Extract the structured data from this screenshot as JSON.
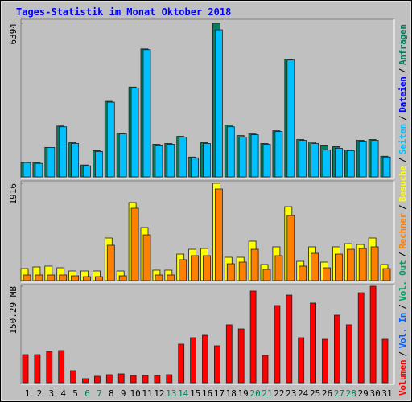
{
  "chart_data": [
    {
      "type": "bar",
      "title": "Tages-Statistik im Monat Oktober 2018",
      "ylim": [
        0,
        6394
      ],
      "yticks": [
        6394
      ],
      "series": [
        {
          "name": "Anfragen",
          "color": "#008060",
          "values": [
            596,
            596,
            1225,
            2118,
            1423,
            497,
            1092,
            3145,
            1821,
            3740,
            5329,
            1357,
            1390,
            1688,
            828,
            1423,
            6394,
            2152,
            1721,
            1787,
            1390,
            1920,
            4899,
            1556,
            1456,
            1324,
            1258,
            1125,
            1523,
            1556,
            861
          ]
        },
        {
          "name": "Seiten",
          "color": "#00c0ff",
          "values": [
            596,
            563,
            1225,
            2085,
            1390,
            463,
            1059,
            3111,
            1787,
            3707,
            5296,
            1324,
            1357,
            1655,
            794,
            1390,
            6124,
            2085,
            1655,
            1754,
            1357,
            1887,
            4866,
            1523,
            1390,
            1125,
            1192,
            1092,
            1490,
            1523,
            828
          ]
        }
      ],
      "other_legend": [
        {
          "name": "Dateien",
          "color": "#0000ff"
        }
      ]
    },
    {
      "type": "bar",
      "ylim": [
        0,
        1916
      ],
      "yticks": [
        1916
      ],
      "series": [
        {
          "name": "Besuche",
          "color": "#ffff00",
          "values": [
            237,
            269,
            285,
            253,
            190,
            190,
            190,
            839,
            190,
            1536,
            1045,
            206,
            206,
            522,
            617,
            633,
            1916,
            459,
            459,
            776,
            317,
            665,
            1456,
            380,
            665,
            364,
            665,
            728,
            712,
            839,
            317
          ]
        },
        {
          "name": "Rechner",
          "color": "#ff8000",
          "values": [
            111,
            111,
            111,
            111,
            95,
            79,
            79,
            697,
            95,
            1425,
            902,
            111,
            111,
            412,
            491,
            491,
            1805,
            332,
            364,
            617,
            222,
            491,
            1282,
            285,
            538,
            253,
            522,
            617,
            633,
            665,
            237
          ]
        }
      ]
    },
    {
      "type": "bar",
      "ylim": [
        0,
        150.29
      ],
      "yticks": [
        {
          "value": 150.29,
          "label": "150.29 MB"
        }
      ],
      "categories": [
        "1",
        "2",
        "3",
        "4",
        "5",
        "6",
        "7",
        "8",
        "9",
        "10",
        "11",
        "12",
        "13",
        "14",
        "15",
        "16",
        "17",
        "18",
        "19",
        "20",
        "21",
        "22",
        "23",
        "24",
        "25",
        "26",
        "27",
        "28",
        "29",
        "30",
        "31"
      ],
      "category_colors": [
        "#000000",
        "#000000",
        "#000000",
        "#000000",
        "#000000",
        "#00805c",
        "#00805c",
        "#000000",
        "#000000",
        "#000000",
        "#000000",
        "#000000",
        "#00805c",
        "#00805c",
        "#000000",
        "#000000",
        "#000000",
        "#000000",
        "#000000",
        "#00805c",
        "#00805c",
        "#000000",
        "#000000",
        "#000000",
        "#000000",
        "#000000",
        "#00805c",
        "#00805c",
        "#000000",
        "#000000",
        "#000000"
      ],
      "series": [
        {
          "name": "Volumen",
          "color": "#ff0000",
          "values": [
            43.8,
            43.8,
            48.8,
            50.1,
            18.8,
            6.3,
            10.0,
            12.5,
            13.8,
            11.3,
            11.3,
            11.3,
            12.5,
            60.1,
            70.1,
            73.9,
            57.6,
            90.2,
            83.9,
            142.8,
            42.6,
            120.2,
            136.5,
            70.1,
            124.0,
            67.6,
            105.2,
            90.2,
            140.2,
            150.29,
            67.6
          ]
        }
      ],
      "other_legend": [
        {
          "name": "Vol. In",
          "color": "#0060ff"
        },
        {
          "name": "Vol. Out",
          "color": "#00a060"
        }
      ]
    }
  ],
  "legend_separator": "/"
}
